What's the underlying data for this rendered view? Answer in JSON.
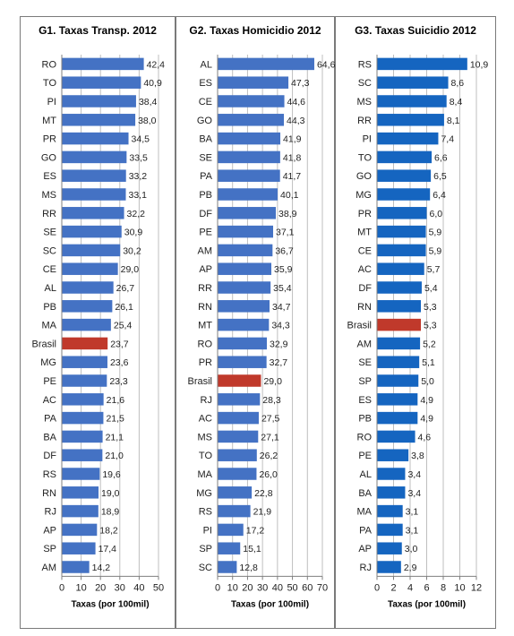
{
  "colors": {
    "bar": "#4472c4",
    "bar_g3": "#1565c0",
    "highlight": "#c0392b",
    "grid": "#bfbfbf",
    "axis": "#7f7f7f"
  },
  "chart_data": [
    {
      "type": "bar",
      "orientation": "horizontal",
      "title": "G1. Taxas Transp. 2012",
      "xlabel": "Taxas (por 100mil)",
      "xlim": [
        0,
        50
      ],
      "xticks": [
        0,
        10,
        20,
        30,
        40,
        50
      ],
      "highlight": "Brasil",
      "categories": [
        "RO",
        "TO",
        "PI",
        "MT",
        "PR",
        "GO",
        "ES",
        "MS",
        "RR",
        "SE",
        "SC",
        "CE",
        "AL",
        "PB",
        "MA",
        "Brasil",
        "MG",
        "PE",
        "AC",
        "PA",
        "BA",
        "DF",
        "RS",
        "RN",
        "RJ",
        "AP",
        "SP",
        "AM"
      ],
      "labels": [
        "42,4",
        "40,9",
        "38,4",
        "38,0",
        "34,5",
        "33,5",
        "33,2",
        "33,1",
        "32,2",
        "30,9",
        "30,2",
        "29,0",
        "26,7",
        "26,1",
        "25,4",
        "23,7",
        "23,6",
        "23,3",
        "21,6",
        "21,5",
        "21,1",
        "21,0",
        "19,6",
        "19,0",
        "18,9",
        "18,2",
        "17,4",
        "14,2"
      ],
      "values": [
        42.4,
        40.9,
        38.4,
        38.0,
        34.5,
        33.5,
        33.2,
        33.1,
        32.2,
        30.9,
        30.2,
        29.0,
        26.7,
        26.1,
        25.4,
        23.7,
        23.6,
        23.3,
        21.6,
        21.5,
        21.1,
        21.0,
        19.6,
        19.0,
        18.9,
        18.2,
        17.4,
        14.2
      ],
      "grid": true
    },
    {
      "type": "bar",
      "orientation": "horizontal",
      "title": "G2. Taxas Homicidio 2012",
      "xlabel": "Taxas (por 100mil)",
      "xlim": [
        0,
        70
      ],
      "xticks": [
        0,
        10,
        20,
        30,
        40,
        50,
        60,
        70
      ],
      "highlight": "Brasil",
      "categories": [
        "AL",
        "ES",
        "CE",
        "GO",
        "BA",
        "SE",
        "PA",
        "PB",
        "DF",
        "PE",
        "AM",
        "AP",
        "RR",
        "RN",
        "MT",
        "RO",
        "PR",
        "Brasil",
        "RJ",
        "AC",
        "MS",
        "TO",
        "MA",
        "MG",
        "RS",
        "PI",
        "SP",
        "SC"
      ],
      "labels": [
        "64,6",
        "47,3",
        "44,6",
        "44,3",
        "41,9",
        "41,8",
        "41,7",
        "40,1",
        "38,9",
        "37,1",
        "36,7",
        "35,9",
        "35,4",
        "34,7",
        "34,3",
        "32,9",
        "32,7",
        "29,0",
        "28,3",
        "27,5",
        "27,1",
        "26,2",
        "26,0",
        "22,8",
        "21,9",
        "17,2",
        "15,1",
        "12,8"
      ],
      "values": [
        64.6,
        47.3,
        44.6,
        44.3,
        41.9,
        41.8,
        41.7,
        40.1,
        38.9,
        37.1,
        36.7,
        35.9,
        35.4,
        34.7,
        34.3,
        32.9,
        32.7,
        29.0,
        28.3,
        27.5,
        27.1,
        26.2,
        26.0,
        22.8,
        21.9,
        17.2,
        15.1,
        12.8
      ],
      "grid": true
    },
    {
      "type": "bar",
      "orientation": "horizontal",
      "title": "G3. Taxas Suicidio 2012",
      "xlabel": "Taxas (por 100mil)",
      "xlim": [
        0,
        12
      ],
      "xticks": [
        0,
        2,
        4,
        6,
        8,
        10,
        12
      ],
      "highlight": "Brasil",
      "categories": [
        "RS",
        "SC",
        "MS",
        "RR",
        "PI",
        "TO",
        "GO",
        "MG",
        "PR",
        "MT",
        "CE",
        "AC",
        "DF",
        "RN",
        "Brasil",
        "AM",
        "SE",
        "SP",
        "ES",
        "PB",
        "RO",
        "PE",
        "AL",
        "BA",
        "MA",
        "PA",
        "AP",
        "RJ"
      ],
      "labels": [
        "10,9",
        "8,6",
        "8,4",
        "8,1",
        "7,4",
        "6,6",
        "6,5",
        "6,4",
        "6,0",
        "5,9",
        "5,9",
        "5,7",
        "5,4",
        "5,3",
        "5,3",
        "5,2",
        "5,1",
        "5,0",
        "4,9",
        "4,9",
        "4,6",
        "3,8",
        "3,4",
        "3,4",
        "3,1",
        "3,1",
        "3,0",
        "2,9"
      ],
      "values": [
        10.9,
        8.6,
        8.4,
        8.1,
        7.4,
        6.6,
        6.5,
        6.4,
        6.0,
        5.9,
        5.9,
        5.7,
        5.4,
        5.3,
        5.3,
        5.2,
        5.1,
        5.0,
        4.9,
        4.9,
        4.6,
        3.8,
        3.4,
        3.4,
        3.1,
        3.1,
        3.0,
        2.9
      ],
      "grid": true
    }
  ]
}
